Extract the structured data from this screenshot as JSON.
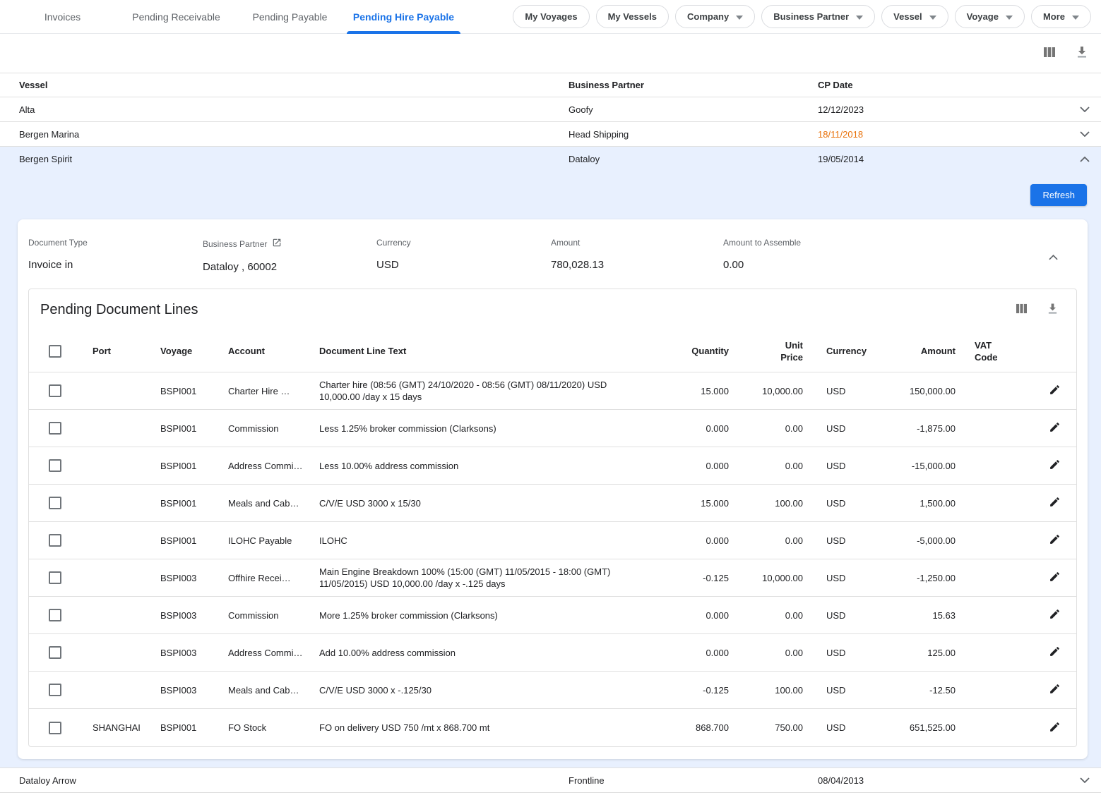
{
  "tabs": [
    {
      "label": "Invoices",
      "active": false
    },
    {
      "label": "Pending Receivable",
      "active": false
    },
    {
      "label": "Pending Payable",
      "active": false
    },
    {
      "label": "Pending Hire Payable",
      "active": true
    }
  ],
  "filters": [
    {
      "label": "My Voyages",
      "dropdown": false
    },
    {
      "label": "My Vessels",
      "dropdown": false
    },
    {
      "label": "Company",
      "dropdown": true
    },
    {
      "label": "Business Partner",
      "dropdown": true
    },
    {
      "label": "Vessel",
      "dropdown": true
    },
    {
      "label": "Voyage",
      "dropdown": true
    },
    {
      "label": "More",
      "dropdown": true
    }
  ],
  "toolbar_icons": [
    "view-columns-icon",
    "download-icon"
  ],
  "colors": {
    "accent_blue": "#1a73e8",
    "expanded_bg": "#e8f0fe",
    "overdue_orange": "#e8710a",
    "text_primary": "#202124",
    "text_secondary": "#5f6368"
  },
  "vessel_table": {
    "headers": [
      "Vessel",
      "Business Partner",
      "CP Date"
    ],
    "rows": [
      {
        "vessel": "Alta",
        "business_partner": "Goofy",
        "cp_date": "12/12/2023",
        "cp_date_overdue": false,
        "state": "collapsed"
      },
      {
        "vessel": "Bergen Marina",
        "business_partner": "Head Shipping",
        "cp_date": "18/11/2018",
        "cp_date_overdue": true,
        "state": "collapsed"
      },
      {
        "vessel": "Bergen Spirit",
        "business_partner": "Dataloy",
        "cp_date": "19/05/2014",
        "cp_date_overdue": false,
        "state": "expanded"
      },
      {
        "vessel": "Dataloy Arrow",
        "business_partner": "Frontline",
        "cp_date": "08/04/2013",
        "cp_date_overdue": false,
        "state": "collapsed"
      }
    ]
  },
  "expanded_panel": {
    "refresh_label": "Refresh",
    "summary_fields": [
      {
        "label": "Document Type",
        "value": "Invoice in",
        "icon": null
      },
      {
        "label": "Business Partner",
        "value": "Dataloy , 60002",
        "icon": "open-in-new-icon"
      },
      {
        "label": "Currency",
        "value": "USD",
        "icon": null
      },
      {
        "label": "Amount",
        "value": "780,028.13",
        "icon": null
      },
      {
        "label": "Amount to Assemble",
        "value": "0.00",
        "icon": null
      }
    ],
    "pending_document_lines": {
      "title": "Pending Document Lines",
      "headers": {
        "port": "Port",
        "voyage": "Voyage",
        "account": "Account",
        "text": "Document Line Text",
        "quantity": "Quantity",
        "unit_price": "Unit Price",
        "currency": "Currency",
        "amount": "Amount",
        "vat_code": "VAT Code"
      },
      "rows": [
        {
          "port": "",
          "voyage": "BSPI001",
          "account": "Charter Hire …",
          "text": "Charter hire (08:56 (GMT) 24/10/2020 - 08:56 (GMT) 08/11/2020) USD 10,000.00 /day x 15 days",
          "quantity": "15.000",
          "unit_price": "10,000.00",
          "currency": "USD",
          "amount": "150,000.00",
          "vat_code": ""
        },
        {
          "port": "",
          "voyage": "BSPI001",
          "account": "Commission",
          "text": "Less 1.25% broker commission (Clarksons)",
          "quantity": "0.000",
          "unit_price": "0.00",
          "currency": "USD",
          "amount": "-1,875.00",
          "vat_code": ""
        },
        {
          "port": "",
          "voyage": "BSPI001",
          "account": "Address Commi…",
          "text": "Less 10.00% address commission",
          "quantity": "0.000",
          "unit_price": "0.00",
          "currency": "USD",
          "amount": "-15,000.00",
          "vat_code": ""
        },
        {
          "port": "",
          "voyage": "BSPI001",
          "account": "Meals and Cab…",
          "text": "C/V/E USD 3000 x 15/30",
          "quantity": "15.000",
          "unit_price": "100.00",
          "currency": "USD",
          "amount": "1,500.00",
          "vat_code": ""
        },
        {
          "port": "",
          "voyage": "BSPI001",
          "account": "ILOHC Payable",
          "text": "ILOHC",
          "quantity": "0.000",
          "unit_price": "0.00",
          "currency": "USD",
          "amount": "-5,000.00",
          "vat_code": ""
        },
        {
          "port": "",
          "voyage": "BSPI003",
          "account": "Offhire Recei…",
          "text": "Main Engine Breakdown 100% (15:00 (GMT) 11/05/2015 - 18:00 (GMT) 11/05/2015) USD 10,000.00 /day x -.125 days",
          "quantity": "-0.125",
          "unit_price": "10,000.00",
          "currency": "USD",
          "amount": "-1,250.00",
          "vat_code": ""
        },
        {
          "port": "",
          "voyage": "BSPI003",
          "account": "Commission",
          "text": "More 1.25% broker commission (Clarksons)",
          "quantity": "0.000",
          "unit_price": "0.00",
          "currency": "USD",
          "amount": "15.63",
          "vat_code": ""
        },
        {
          "port": "",
          "voyage": "BSPI003",
          "account": "Address Commi…",
          "text": "Add 10.00% address commission",
          "quantity": "0.000",
          "unit_price": "0.00",
          "currency": "USD",
          "amount": "125.00",
          "vat_code": ""
        },
        {
          "port": "",
          "voyage": "BSPI003",
          "account": "Meals and Cab…",
          "text": "C/V/E USD 3000 x -.125/30",
          "quantity": "-0.125",
          "unit_price": "100.00",
          "currency": "USD",
          "amount": "-12.50",
          "vat_code": ""
        },
        {
          "port": "SHANGHAI",
          "voyage": "BSPI001",
          "account": "FO Stock",
          "text": "FO on delivery USD 750 /mt x 868.700 mt",
          "quantity": "868.700",
          "unit_price": "750.00",
          "currency": "USD",
          "amount": "651,525.00",
          "vat_code": ""
        }
      ]
    }
  }
}
